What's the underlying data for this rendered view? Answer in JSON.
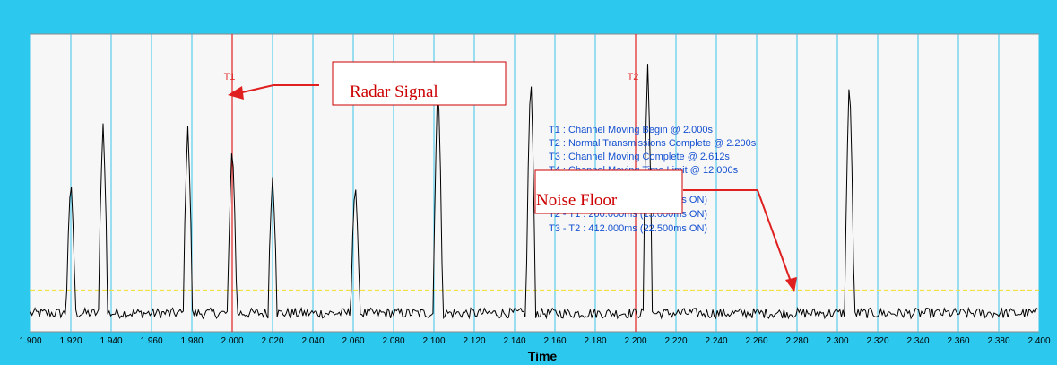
{
  "chart_data": {
    "type": "line",
    "xlabel": "Time",
    "xlim": [
      1.9,
      2.4
    ],
    "x_ticks": [
      "1.900",
      "1.920",
      "1.940",
      "1.960",
      "1.980",
      "2.000",
      "2.020",
      "2.040",
      "2.060",
      "2.080",
      "2.100",
      "2.120",
      "2.140",
      "2.160",
      "2.180",
      "2.200",
      "2.220",
      "2.240",
      "2.260",
      "2.280",
      "2.300",
      "2.320",
      "2.340",
      "2.360",
      "2.380",
      "2.400"
    ],
    "pulses": [
      {
        "t": 1.92,
        "peak": 0.52
      },
      {
        "t": 1.936,
        "peak": 0.7
      },
      {
        "t": 1.978,
        "peak": 0.69
      },
      {
        "t": 2.0,
        "peak": 0.64
      },
      {
        "t": 2.02,
        "peak": 0.52
      },
      {
        "t": 2.061,
        "peak": 0.51
      },
      {
        "t": 2.102,
        "peak": 0.86
      },
      {
        "t": 2.148,
        "peak": 0.88
      },
      {
        "t": 2.206,
        "peak": 0.9
      },
      {
        "t": 2.306,
        "peak": 0.87
      }
    ],
    "noise_floor_level": 0.14,
    "markers": [
      {
        "label": "T1",
        "x": 2.0
      },
      {
        "label": "T2",
        "x": 2.2
      }
    ],
    "info_lines": [
      "T1 : Channel Moving Begin @ 2.000s",
      "T2 : Normal Transmissions Complete @ 2.200s",
      "T3 : Channel Moving Complete @ 2.612s",
      "T4 : Channel Moving Time Limit @ 12.000s",
      "T3 - T1 : 612.000ms (37.500ms ON)",
      "T2 - T1 : 200.000ms (15.000ms ON)",
      "T3 - T2 : 412.000ms (22.500ms ON)"
    ],
    "annotations": [
      {
        "text": "Radar Signal",
        "target": "T1 pulse"
      },
      {
        "text": "Noise Floor",
        "target": "baseline near 2.280"
      }
    ]
  },
  "colors": {
    "frame": "#2cc8ee",
    "plot_bg": "#f7f7f7",
    "grid_line": "#38c4e8",
    "signal": "#000000",
    "marker": "#e02020",
    "threshold": "#f0e040",
    "info_text": "#1450d0",
    "callout_text": "#cc0000"
  }
}
